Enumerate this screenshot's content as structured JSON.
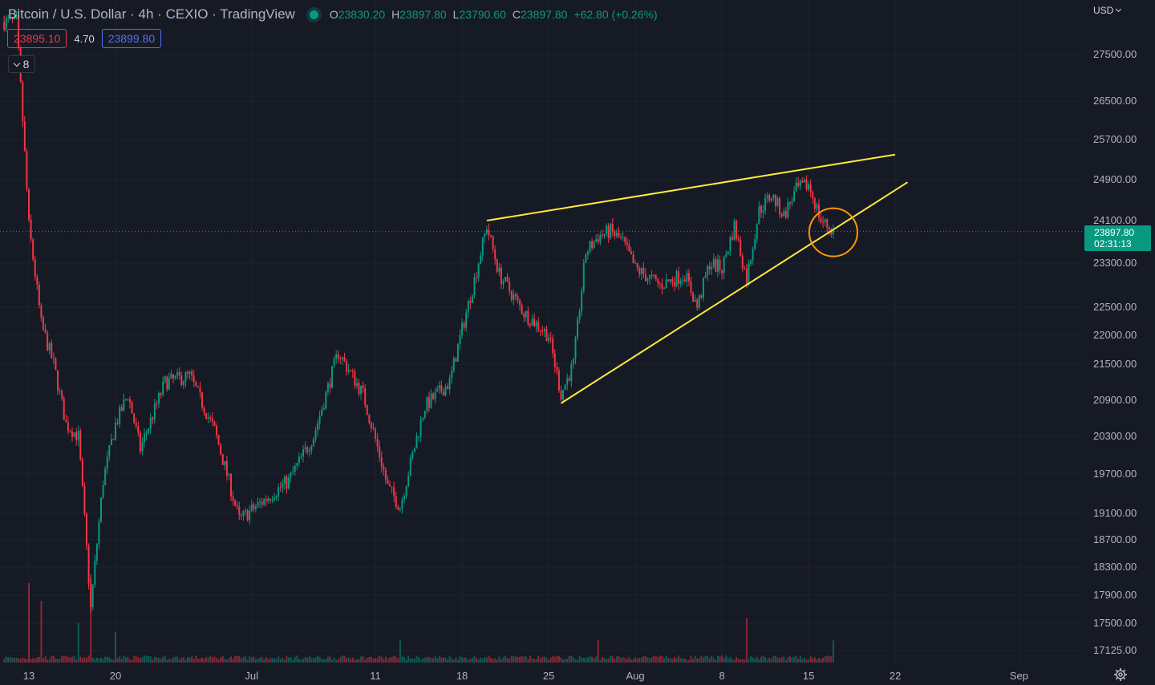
{
  "header": {
    "symbol": "Bitcoin / U.S. Dollar",
    "interval": "4h",
    "exchange": "CEXIO",
    "source": "TradingView",
    "ohlc": {
      "o_label": "O",
      "o": "23830.20",
      "h_label": "H",
      "h": "23897.80",
      "l_label": "L",
      "l": "23790.60",
      "c_label": "C",
      "c": "23897.80",
      "change": "+62.80 (+0.26%)"
    }
  },
  "quote": {
    "bid": "23895.10",
    "spread": "4.70",
    "ask": "23899.80"
  },
  "indicators_toggle": {
    "count": "8"
  },
  "currency": "USD",
  "last_price": {
    "price": "23897.80",
    "countdown": "02:31:13"
  },
  "colors": {
    "background": "#161a25",
    "grid": "#1f2330",
    "up": "#089981",
    "down": "#f23645",
    "trendline": "#ffeb3b",
    "circle": "#ff9800"
  },
  "icons": {
    "live": "live-dot-icon",
    "collapse": "chevron-down-icon",
    "currency": "chevron-down-icon",
    "settings": "gear-icon"
  },
  "chart_data": {
    "type": "candlestick",
    "axis_scale": "nonlinear-price",
    "y_ticks": [
      27500,
      26500,
      25700,
      24900,
      24100,
      23300,
      22500,
      22000,
      21500,
      20900,
      20300,
      19700,
      19100,
      18700,
      18300,
      17900,
      17500,
      17125
    ],
    "y_tick_labels": [
      "27500.00",
      "26500.00",
      "25700.00",
      "24900.00",
      "24100.00",
      "23300.00",
      "22500.00",
      "22000.00",
      "21500.00",
      "20900.00",
      "20300.00",
      "19700.00",
      "19100.00",
      "18700.00",
      "18300.00",
      "17900.00",
      "17500.00",
      "17125.00"
    ],
    "x_ticks": [
      {
        "date": "2022-06-13",
        "label": "13"
      },
      {
        "date": "2022-06-20",
        "label": "20"
      },
      {
        "date": "2022-07-01",
        "label": "Jul"
      },
      {
        "date": "2022-07-11",
        "label": "11"
      },
      {
        "date": "2022-07-18",
        "label": "18"
      },
      {
        "date": "2022-07-25",
        "label": "25"
      },
      {
        "date": "2022-08-01",
        "label": "Aug"
      },
      {
        "date": "2022-08-08",
        "label": "8"
      },
      {
        "date": "2022-08-15",
        "label": "15"
      },
      {
        "date": "2022-08-22",
        "label": "22"
      },
      {
        "date": "2022-09-01",
        "label": "Sep"
      }
    ],
    "close_path": [
      [
        "2022-06-12",
        28200
      ],
      [
        "2022-06-13",
        24000
      ],
      [
        "2022-06-14",
        22200
      ],
      [
        "2022-06-15",
        21500
      ],
      [
        "2022-06-16",
        20500
      ],
      [
        "2022-06-17",
        20300
      ],
      [
        "2022-06-18",
        17700
      ],
      [
        "2022-06-19",
        19600
      ],
      [
        "2022-06-20",
        20500
      ],
      [
        "2022-06-21",
        21000
      ],
      [
        "2022-06-22",
        20100
      ],
      [
        "2022-06-24",
        21200
      ],
      [
        "2022-06-26",
        21300
      ],
      [
        "2022-06-28",
        20400
      ],
      [
        "2022-06-30",
        19000
      ],
      [
        "2022-07-02",
        19300
      ],
      [
        "2022-07-04",
        19600
      ],
      [
        "2022-07-06",
        20300
      ],
      [
        "2022-07-08",
        21700
      ],
      [
        "2022-07-10",
        21000
      ],
      [
        "2022-07-12",
        19500
      ],
      [
        "2022-07-13",
        19200
      ],
      [
        "2022-07-15",
        20800
      ],
      [
        "2022-07-17",
        21200
      ],
      [
        "2022-07-19",
        23000
      ],
      [
        "2022-07-20",
        24000
      ],
      [
        "2022-07-21",
        23100
      ],
      [
        "2022-07-23",
        22400
      ],
      [
        "2022-07-25",
        22000
      ],
      [
        "2022-07-26",
        21000
      ],
      [
        "2022-07-27",
        21500
      ],
      [
        "2022-07-28",
        23500
      ],
      [
        "2022-07-29",
        23800
      ],
      [
        "2022-07-30",
        23900
      ],
      [
        "2022-07-31",
        23700
      ],
      [
        "2022-08-01",
        23200
      ],
      [
        "2022-08-03",
        22900
      ],
      [
        "2022-08-05",
        23100
      ],
      [
        "2022-08-06",
        22500
      ],
      [
        "2022-08-07",
        23300
      ],
      [
        "2022-08-08",
        23200
      ],
      [
        "2022-08-09",
        24000
      ],
      [
        "2022-08-10",
        23000
      ],
      [
        "2022-08-11",
        24300
      ],
      [
        "2022-08-12",
        24600
      ],
      [
        "2022-08-13",
        24200
      ],
      [
        "2022-08-14",
        24700
      ],
      [
        "2022-08-15",
        24800
      ],
      [
        "2022-08-16",
        24100
      ],
      [
        "2022-08-17",
        23898
      ]
    ],
    "volume_spikes": [
      [
        "2022-06-13",
        0.9
      ],
      [
        "2022-06-14",
        0.7
      ],
      [
        "2022-06-17",
        0.45
      ],
      [
        "2022-06-18",
        1.0
      ],
      [
        "2022-06-20",
        0.35
      ],
      [
        "2022-07-13",
        0.25
      ],
      [
        "2022-07-29",
        0.25
      ],
      [
        "2022-08-10",
        0.5
      ],
      [
        "2022-08-17",
        0.25
      ]
    ],
    "annotations": {
      "upper_trendline": [
        [
          "2022-07-20",
          24100
        ],
        [
          "2022-08-22",
          25400
        ]
      ],
      "lower_trendline": [
        [
          "2022-07-26",
          20850
        ],
        [
          "2022-08-23",
          24850
        ]
      ],
      "circle_center": [
        "2022-08-17",
        23880
      ]
    },
    "last_price_line": 23897.8,
    "grid": true
  }
}
